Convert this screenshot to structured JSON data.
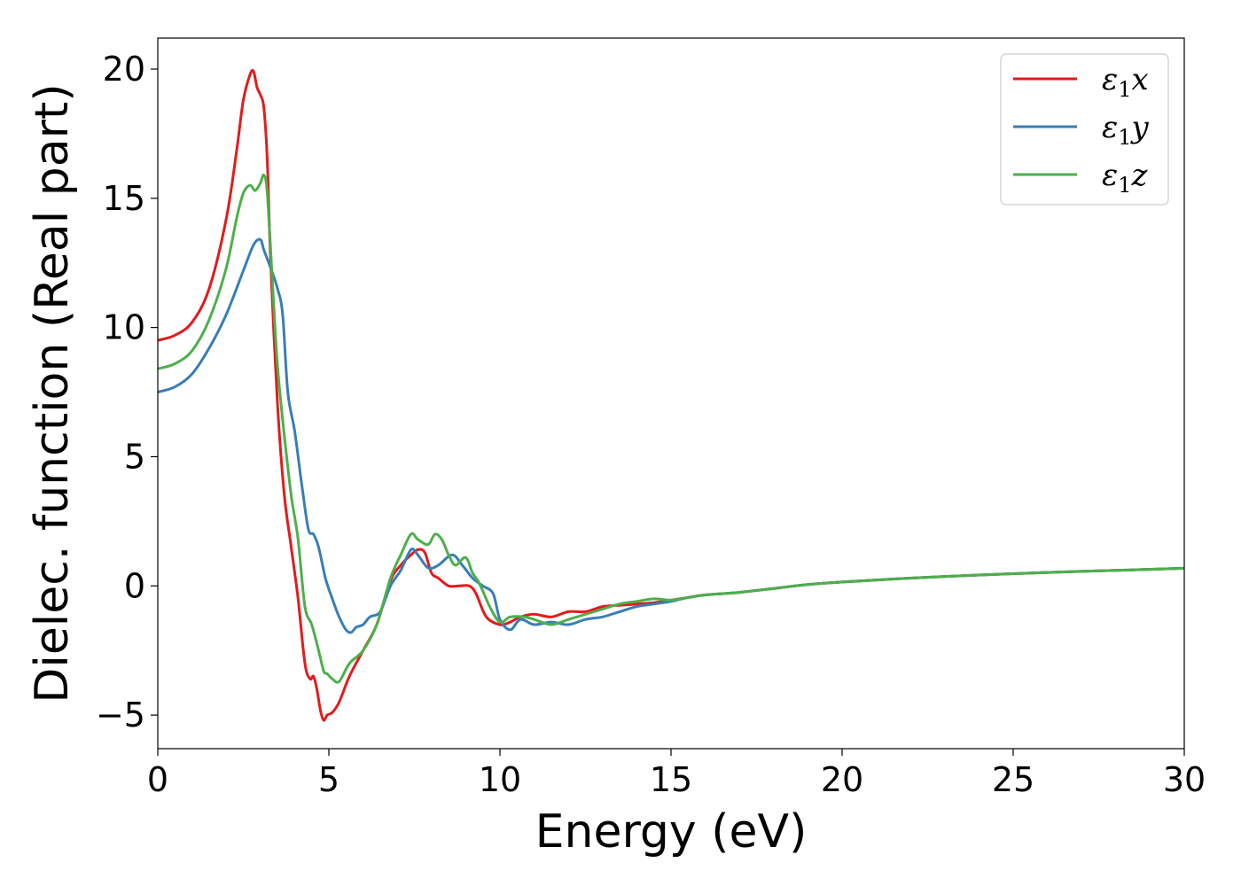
{
  "chart_data": {
    "type": "line",
    "title": "",
    "xlabel": "Energy (eV)",
    "ylabel": "Dielec. function (Real part)",
    "xlim": [
      0,
      30
    ],
    "ylim": [
      -6.3,
      21.2
    ],
    "xticks": [
      0,
      5,
      10,
      15,
      20,
      25,
      30
    ],
    "yticks": [
      -5,
      0,
      5,
      10,
      15,
      20
    ],
    "xtick_labels": [
      "0",
      "5",
      "10",
      "15",
      "20",
      "25",
      "30"
    ],
    "ytick_labels": [
      "−5",
      "0",
      "5",
      "10",
      "15",
      "20"
    ],
    "grid": false,
    "legend_position": "top-right",
    "series": [
      {
        "name": "ε1x",
        "label_base": "ε",
        "label_sub": "1",
        "label_var": "x",
        "color": "#e41a1c",
        "x": [
          0,
          0.5,
          1,
          1.5,
          2,
          2.3,
          2.5,
          2.7,
          2.8,
          2.9,
          3.0,
          3.1,
          3.2,
          3.3,
          3.5,
          3.7,
          3.9,
          4.1,
          4.3,
          4.45,
          4.55,
          4.65,
          4.75,
          4.85,
          4.95,
          5.1,
          5.3,
          5.6,
          6.0,
          6.4,
          6.8,
          7.1,
          7.4,
          7.6,
          7.8,
          8.0,
          8.2,
          8.5,
          8.8,
          9.1,
          9.3,
          9.6,
          10.0,
          10.3,
          10.6,
          11.0,
          11.5,
          12.0,
          12.5,
          13.0,
          13.5,
          14.0,
          14.5,
          15.0,
          15.5,
          16.0,
          17.0,
          18.0,
          19.0,
          20.0,
          22.0,
          24.0,
          26.0,
          28.0,
          30.0
        ],
        "y": [
          9.5,
          9.7,
          10.2,
          11.5,
          14.2,
          16.8,
          18.8,
          19.8,
          19.9,
          19.3,
          19.0,
          18.5,
          16.5,
          12.5,
          7.0,
          3.5,
          1.5,
          -0.5,
          -3.0,
          -3.6,
          -3.5,
          -4.0,
          -4.8,
          -5.2,
          -5.0,
          -4.9,
          -4.5,
          -3.5,
          -2.5,
          -1.5,
          0.2,
          0.8,
          1.2,
          1.4,
          1.3,
          0.5,
          0.3,
          0.0,
          0.0,
          0.0,
          -0.3,
          -1.2,
          -1.5,
          -1.4,
          -1.2,
          -1.1,
          -1.2,
          -1.0,
          -1.0,
          -0.8,
          -0.75,
          -0.7,
          -0.65,
          -0.55,
          -0.45,
          -0.35,
          -0.25,
          -0.1,
          0.05,
          0.15,
          0.3,
          0.42,
          0.52,
          0.6,
          0.68
        ]
      },
      {
        "name": "ε1y",
        "label_base": "ε",
        "label_sub": "1",
        "label_var": "y",
        "color": "#377eb8",
        "x": [
          0,
          0.5,
          1,
          1.5,
          2,
          2.5,
          2.8,
          3.0,
          3.1,
          3.3,
          3.5,
          3.65,
          3.8,
          4.0,
          4.2,
          4.4,
          4.55,
          4.7,
          4.9,
          5.1,
          5.3,
          5.5,
          5.65,
          5.8,
          6.0,
          6.2,
          6.5,
          6.8,
          7.1,
          7.4,
          7.6,
          7.9,
          8.2,
          8.6,
          8.9,
          9.2,
          9.5,
          9.8,
          10.0,
          10.3,
          10.6,
          11.0,
          11.5,
          12.0,
          12.5,
          13.0,
          13.5,
          14.0,
          14.5,
          15.0,
          15.5,
          16.0,
          17.0,
          18.0,
          19.0,
          20.0,
          22.0,
          24.0,
          26.0,
          28.0,
          30.0
        ],
        "y": [
          7.5,
          7.7,
          8.2,
          9.2,
          10.5,
          12.2,
          13.2,
          13.4,
          13.0,
          12.3,
          11.5,
          10.5,
          7.5,
          6.0,
          4.0,
          2.2,
          2.0,
          1.5,
          0.3,
          -0.5,
          -1.2,
          -1.7,
          -1.8,
          -1.6,
          -1.5,
          -1.2,
          -1.0,
          0.0,
          0.6,
          1.4,
          1.2,
          0.7,
          0.8,
          1.2,
          0.8,
          0.3,
          0.0,
          -0.3,
          -1.3,
          -1.7,
          -1.3,
          -1.5,
          -1.4,
          -1.5,
          -1.3,
          -1.2,
          -1.0,
          -0.8,
          -0.7,
          -0.6,
          -0.45,
          -0.35,
          -0.25,
          -0.1,
          0.05,
          0.15,
          0.3,
          0.42,
          0.52,
          0.6,
          0.68
        ]
      },
      {
        "name": "ε1z",
        "label_base": "ε",
        "label_sub": "1",
        "label_var": "z",
        "color": "#4daf4a",
        "x": [
          0,
          0.5,
          1,
          1.5,
          2,
          2.3,
          2.5,
          2.7,
          2.85,
          3.0,
          3.1,
          3.2,
          3.35,
          3.5,
          3.7,
          3.9,
          4.1,
          4.3,
          4.5,
          4.7,
          4.85,
          4.95,
          5.1,
          5.3,
          5.6,
          6.0,
          6.4,
          6.8,
          7.1,
          7.4,
          7.6,
          7.9,
          8.1,
          8.3,
          8.5,
          8.7,
          9.0,
          9.2,
          9.4,
          9.7,
          10.0,
          10.3,
          10.7,
          11.0,
          11.5,
          12.0,
          12.5,
          13.0,
          13.5,
          14.0,
          14.5,
          15.0,
          15.5,
          16.0,
          17.0,
          18.0,
          19.0,
          20.0,
          22.0,
          24.0,
          26.0,
          28.0,
          30.0
        ],
        "y": [
          8.4,
          8.6,
          9.1,
          10.3,
          12.3,
          14.2,
          15.2,
          15.5,
          15.3,
          15.6,
          15.9,
          15.2,
          11.8,
          8.5,
          5.8,
          3.5,
          1.8,
          -0.8,
          -1.5,
          -2.5,
          -3.3,
          -3.4,
          -3.6,
          -3.7,
          -3.0,
          -2.5,
          -1.5,
          0.3,
          1.2,
          2.0,
          1.8,
          1.6,
          2.0,
          1.8,
          1.2,
          0.8,
          1.1,
          0.5,
          0.1,
          -0.8,
          -1.4,
          -1.2,
          -1.2,
          -1.3,
          -1.5,
          -1.3,
          -1.1,
          -0.9,
          -0.7,
          -0.6,
          -0.5,
          -0.55,
          -0.45,
          -0.35,
          -0.25,
          -0.1,
          0.05,
          0.15,
          0.3,
          0.42,
          0.52,
          0.6,
          0.68
        ]
      }
    ]
  }
}
